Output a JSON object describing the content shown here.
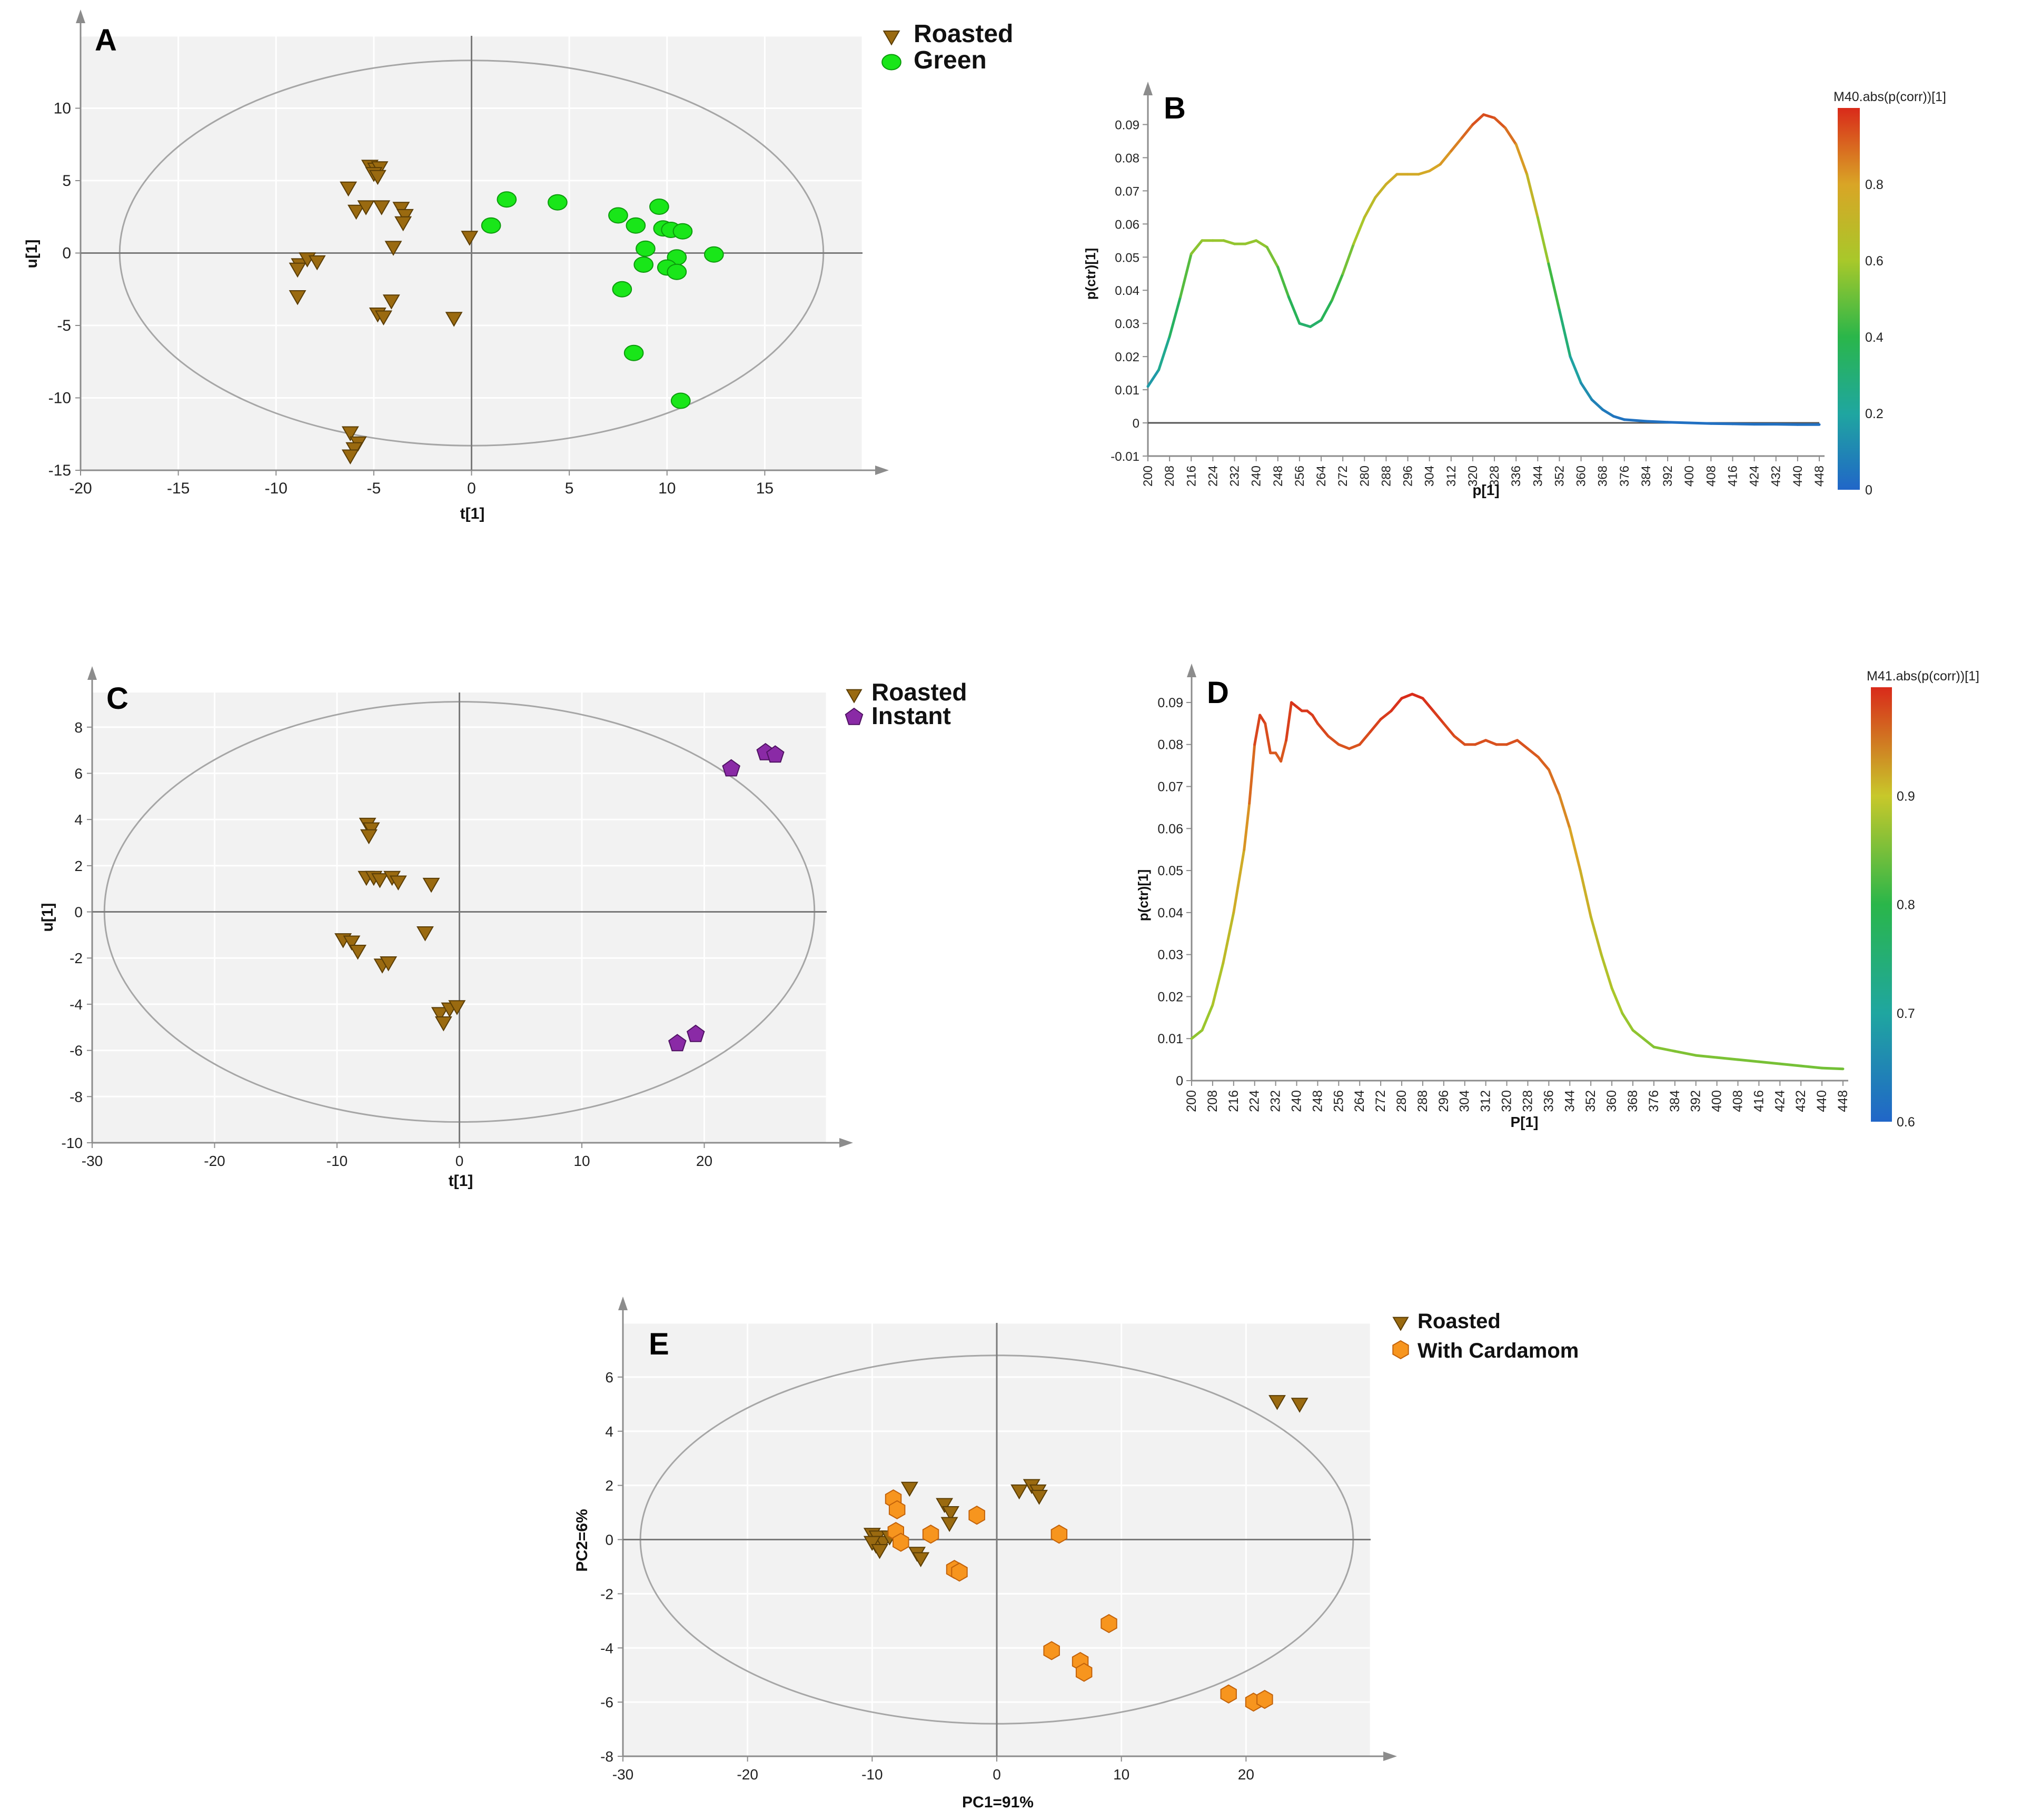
{
  "colors": {
    "roasted": "#9a6a10",
    "roasted_stroke": "#5a3d05",
    "green": "#19e619",
    "green_stroke": "#0c9a0c",
    "instant": "#8a2aa6",
    "instant_stroke": "#4f1262",
    "cardamom": "#f7951e",
    "cardamom_stroke": "#c2620a",
    "plot_bg": "#f2f2f2",
    "grid": "#ffffff",
    "axis": "#8c8c8c",
    "ellipse": "#a6a6a6"
  },
  "chart_data": [
    {
      "panel": "A",
      "type": "scatter",
      "xlabel": "t[1]",
      "ylabel": "u[1]",
      "xlim": [
        -20,
        20
      ],
      "ylim": [
        -15,
        15
      ],
      "xticks": [
        -20,
        -15,
        -10,
        -5,
        0,
        5,
        10,
        15
      ],
      "yticks": [
        -15,
        -10,
        -5,
        0,
        5,
        10
      ],
      "ellipse": {
        "rx": 18,
        "ry": 13.3
      },
      "series": [
        {
          "name": "Roasted",
          "marker": "triangle",
          "points": [
            [
              -5.2,
              6
            ],
            [
              -4.9,
              5.8
            ],
            [
              -4.7,
              5.9
            ],
            [
              -5,
              5.5
            ],
            [
              -4.8,
              5.3
            ],
            [
              -6.3,
              4.5
            ],
            [
              -5.9,
              2.9
            ],
            [
              -5.4,
              3.2
            ],
            [
              -4.6,
              3.2
            ],
            [
              -3.6,
              3.1
            ],
            [
              -3.4,
              2.6
            ],
            [
              -3.5,
              2.1
            ],
            [
              -4,
              0.4
            ],
            [
              -0.1,
              1.1
            ],
            [
              -8.8,
              -0.8
            ],
            [
              -8.4,
              -0.4
            ],
            [
              -7.9,
              -0.6
            ],
            [
              -8.9,
              -1.1
            ],
            [
              -8.9,
              -3
            ],
            [
              -4.1,
              -3.3
            ],
            [
              -4.8,
              -4.2
            ],
            [
              -4.5,
              -4.4
            ],
            [
              -0.9,
              -4.5
            ],
            [
              -6.2,
              -12.4
            ],
            [
              -5.8,
              -13.1
            ],
            [
              -6,
              -13.5
            ],
            [
              -6.2,
              -14
            ]
          ]
        },
        {
          "name": "Green",
          "marker": "circle",
          "points": [
            [
              1.8,
              3.7
            ],
            [
              4.4,
              3.5
            ],
            [
              1,
              1.9
            ],
            [
              7.5,
              2.6
            ],
            [
              9.6,
              3.2
            ],
            [
              8.4,
              1.9
            ],
            [
              9.8,
              1.7
            ],
            [
              10.2,
              1.6
            ],
            [
              10.8,
              1.5
            ],
            [
              8.9,
              0.3
            ],
            [
              10.5,
              -0.3
            ],
            [
              12.4,
              -0.1
            ],
            [
              8.8,
              -0.8
            ],
            [
              10,
              -1
            ],
            [
              10.5,
              -1.3
            ],
            [
              7.7,
              -2.5
            ],
            [
              8.3,
              -6.9
            ],
            [
              10.7,
              -10.2
            ]
          ]
        }
      ],
      "legend": [
        "Roasted",
        "Green"
      ]
    },
    {
      "panel": "B",
      "type": "line",
      "xlabel": "p[1]",
      "ylabel": "p(ctr)[1]",
      "xlim": [
        200,
        448
      ],
      "ylim": [
        -0.01,
        0.095
      ],
      "xtick_labels": [
        "200",
        "208",
        "216",
        "224",
        "232",
        "240",
        "248",
        "256",
        "264",
        "272",
        "280",
        "288",
        "296",
        "304",
        "312",
        "320",
        "328",
        "336",
        "344",
        "352",
        "360",
        "368",
        "376",
        "384",
        "392",
        "400",
        "408",
        "416",
        "424",
        "432",
        "440",
        "448"
      ],
      "yticks": [
        "-0.01",
        "0",
        "0.01",
        "0.02",
        "0.03",
        "0.04",
        "0.05",
        "0.06",
        "0.07",
        "0.08",
        "0.09"
      ],
      "x": [
        200,
        204,
        208,
        212,
        216,
        220,
        224,
        228,
        232,
        236,
        240,
        244,
        248,
        252,
        256,
        260,
        264,
        268,
        272,
        276,
        280,
        284,
        288,
        292,
        296,
        300,
        304,
        308,
        312,
        316,
        320,
        324,
        328,
        332,
        336,
        340,
        344,
        348,
        352,
        356,
        360,
        364,
        368,
        372,
        376,
        384,
        392,
        400,
        408,
        416,
        424,
        432,
        440,
        448
      ],
      "values": [
        0.011,
        0.016,
        0.026,
        0.038,
        0.051,
        0.055,
        0.055,
        0.055,
        0.054,
        0.054,
        0.055,
        0.053,
        0.047,
        0.038,
        0.03,
        0.029,
        0.031,
        0.037,
        0.045,
        0.054,
        0.062,
        0.068,
        0.072,
        0.075,
        0.075,
        0.075,
        0.076,
        0.078,
        0.082,
        0.086,
        0.09,
        0.093,
        0.092,
        0.089,
        0.084,
        0.075,
        0.062,
        0.048,
        0.034,
        0.02,
        0.012,
        0.007,
        0.004,
        0.002,
        0.001,
        0.0005,
        0.0002,
        0,
        -0.0002,
        -0.0003,
        -0.0004,
        -0.0004,
        -0.0005,
        -0.0005
      ],
      "colorbar": {
        "title": "M40.abs(p(corr))[1]",
        "ticks": [
          "0",
          "0.2",
          "0.4",
          "0.6",
          "0.8"
        ],
        "range": [
          0,
          1
        ]
      }
    },
    {
      "panel": "C",
      "type": "scatter",
      "xlabel": "t[1]",
      "ylabel": "u[1]",
      "xlim": [
        -30,
        30
      ],
      "ylim": [
        -10,
        9.5
      ],
      "xticks": [
        -30,
        -20,
        -10,
        0,
        10,
        20
      ],
      "yticks": [
        -10,
        -8,
        -6,
        -4,
        -2,
        0,
        2,
        4,
        6,
        8
      ],
      "ellipse": {
        "rx": 29,
        "ry": 9.1
      },
      "series": [
        {
          "name": "Roasted",
          "marker": "triangle",
          "points": [
            [
              -7.5,
              3.8
            ],
            [
              -7.2,
              3.6
            ],
            [
              -7.4,
              3.3
            ],
            [
              -7.6,
              1.5
            ],
            [
              -7,
              1.5
            ],
            [
              -6.5,
              1.4
            ],
            [
              -5.5,
              1.5
            ],
            [
              -5,
              1.3
            ],
            [
              -2.3,
              1.2
            ],
            [
              -9.5,
              -1.2
            ],
            [
              -8.8,
              -1.3
            ],
            [
              -8.3,
              -1.7
            ],
            [
              -6.3,
              -2.3
            ],
            [
              -5.8,
              -2.2
            ],
            [
              -2.8,
              -0.9
            ],
            [
              -1.6,
              -4.4
            ],
            [
              -1.3,
              -4.8
            ],
            [
              -0.8,
              -4.2
            ],
            [
              -0.2,
              -4.1
            ]
          ]
        },
        {
          "name": "Instant",
          "marker": "pentagon",
          "points": [
            [
              22.2,
              6.2
            ],
            [
              25,
              6.9
            ],
            [
              25.8,
              6.8
            ],
            [
              17.8,
              -5.7
            ],
            [
              19.3,
              -5.3
            ]
          ]
        }
      ],
      "legend": [
        "Roasted",
        "Instant"
      ]
    },
    {
      "panel": "D",
      "type": "line",
      "xlabel": "P[1]",
      "ylabel": "p(ctr)[1]",
      "xlim": [
        200,
        448
      ],
      "ylim": [
        0,
        0.093
      ],
      "xtick_labels": [
        "200",
        "208",
        "216",
        "224",
        "232",
        "240",
        "248",
        "256",
        "264",
        "272",
        "280",
        "288",
        "296",
        "304",
        "312",
        "320",
        "328",
        "336",
        "344",
        "352",
        "360",
        "368",
        "376",
        "384",
        "392",
        "400",
        "408",
        "416",
        "424",
        "432",
        "440",
        "448"
      ],
      "yticks": [
        "0",
        "0.01",
        "0.02",
        "0.03",
        "0.04",
        "0.05",
        "0.06",
        "0.07",
        "0.08",
        "0.09"
      ],
      "x": [
        200,
        204,
        208,
        212,
        216,
        220,
        222,
        224,
        226,
        228,
        230,
        232,
        234,
        236,
        238,
        240,
        242,
        244,
        246,
        248,
        252,
        256,
        260,
        264,
        268,
        272,
        276,
        280,
        284,
        288,
        292,
        296,
        300,
        304,
        308,
        312,
        316,
        320,
        324,
        328,
        332,
        336,
        340,
        344,
        348,
        352,
        356,
        360,
        364,
        368,
        372,
        376,
        384,
        392,
        400,
        408,
        416,
        424,
        432,
        440,
        448
      ],
      "values": [
        0.01,
        0.012,
        0.018,
        0.028,
        0.04,
        0.055,
        0.066,
        0.08,
        0.087,
        0.085,
        0.078,
        0.078,
        0.076,
        0.081,
        0.09,
        0.089,
        0.088,
        0.088,
        0.087,
        0.085,
        0.082,
        0.08,
        0.079,
        0.08,
        0.083,
        0.086,
        0.088,
        0.091,
        0.092,
        0.091,
        0.088,
        0.085,
        0.082,
        0.08,
        0.08,
        0.081,
        0.08,
        0.08,
        0.081,
        0.079,
        0.077,
        0.074,
        0.068,
        0.06,
        0.05,
        0.039,
        0.03,
        0.022,
        0.016,
        0.012,
        0.01,
        0.008,
        0.007,
        0.006,
        0.0055,
        0.005,
        0.0045,
        0.004,
        0.0035,
        0.003,
        0.0028
      ],
      "colorbar": {
        "title": "M41.abs(p(corr))[1]",
        "ticks": [
          "0.6",
          "0.7",
          "0.8",
          "0.9"
        ],
        "range": [
          0.6,
          1
        ]
      }
    },
    {
      "panel": "E",
      "type": "scatter",
      "xlabel": "PC1=91%",
      "ylabel": "PC2=6%",
      "xlim": [
        -30,
        30
      ],
      "ylim": [
        -8,
        8
      ],
      "xticks": [
        -30,
        -20,
        -10,
        0,
        10,
        20
      ],
      "yticks": [
        -8,
        -6,
        -4,
        -2,
        0,
        2,
        4,
        6
      ],
      "ellipse": {
        "rx": 28.6,
        "ry": 6.8
      },
      "series": [
        {
          "name": "Roasted",
          "marker": "triangle",
          "points": [
            [
              -7,
              1.9
            ],
            [
              -4.2,
              1.3
            ],
            [
              -3.7,
              1
            ],
            [
              -3.8,
              0.6
            ],
            [
              2.8,
              2
            ],
            [
              3.3,
              1.8
            ],
            [
              1.8,
              1.8
            ],
            [
              3.4,
              1.6
            ],
            [
              22.5,
              5.1
            ],
            [
              24.3,
              5
            ],
            [
              -10,
              0.2
            ],
            [
              -9.6,
              0.1
            ],
            [
              -9.7,
              -0.2
            ],
            [
              -9.1,
              -0.1
            ],
            [
              -8.6,
              0.1
            ],
            [
              -10,
              -0.1
            ],
            [
              -9.4,
              -0.4
            ],
            [
              -6.4,
              -0.5
            ],
            [
              -6.1,
              -0.7
            ]
          ]
        },
        {
          "name": "With Cardamom",
          "marker": "hexagon",
          "points": [
            [
              -8.3,
              1.5
            ],
            [
              -8,
              1.1
            ],
            [
              -1.6,
              0.9
            ],
            [
              -8.1,
              0.3
            ],
            [
              -7.7,
              -0.1
            ],
            [
              -5.3,
              0.2
            ],
            [
              5,
              0.2
            ],
            [
              -3.4,
              -1.1
            ],
            [
              -3,
              -1.2
            ],
            [
              9,
              -3.1
            ],
            [
              4.4,
              -4.1
            ],
            [
              6.7,
              -4.5
            ],
            [
              7,
              -4.9
            ],
            [
              18.6,
              -5.7
            ],
            [
              20.6,
              -6
            ],
            [
              21.5,
              -5.9
            ]
          ]
        }
      ],
      "legend": [
        "Roasted",
        "With Cardamom"
      ]
    }
  ]
}
